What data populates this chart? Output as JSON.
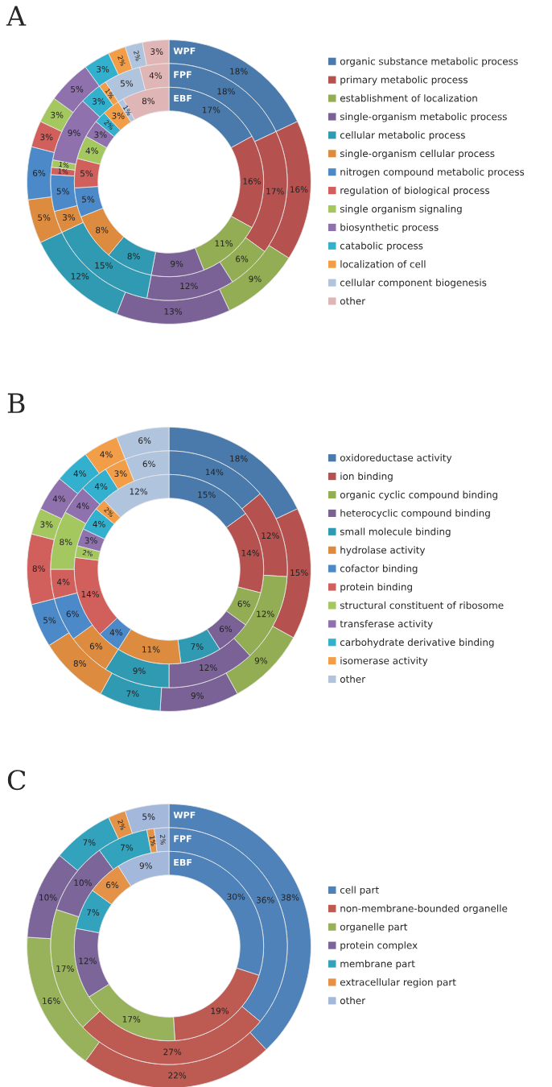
{
  "chart_data": [
    {
      "type": "donut",
      "title": "A",
      "legend": "right",
      "categories": [
        "organic substance metabolic process",
        "primary metabolic process",
        "establishment of localization",
        "single-organism metabolic process",
        "cellular metabolic process",
        "single-organism cellular process",
        "nitrogen compound metabolic process",
        "regulation of biological process",
        "single organism signaling",
        "biosynthetic process",
        "catabolic process",
        "localization of cell",
        "cellular component biogenesis",
        "other"
      ],
      "colors": [
        "#4a7aab",
        "#b5524f",
        "#93ad55",
        "#7a6296",
        "#2f9ab2",
        "#dd8b3f",
        "#4c89c8",
        "#d15f5c",
        "#a4c760",
        "#8f72ad",
        "#34b0cf",
        "#f29d48",
        "#b0c4de",
        "#e0b5b5"
      ],
      "series": [
        {
          "name": "WPF",
          "values": [
            18,
            16,
            9,
            13,
            12,
            5,
            6,
            3,
            3,
            5,
            3,
            2,
            2,
            3
          ],
          "value_labels": [
            "18%",
            "16%",
            "9%",
            "13%",
            "12%",
            "5%",
            "6%",
            "3%",
            "3%",
            "5%",
            "3%",
            "2%",
            "2%",
            "3%"
          ]
        },
        {
          "name": "FPF",
          "values": [
            18,
            17,
            6,
            12,
            15,
            3,
            5,
            1,
            1,
            9,
            3,
            1,
            5,
            4
          ],
          "value_labels": [
            "18%",
            "17%",
            "6%",
            "12%",
            "15%",
            "3%",
            "5%",
            "1%",
            "1%",
            "9%",
            "3%",
            "1%",
            "5%",
            "4%"
          ]
        },
        {
          "name": "EBF",
          "values": [
            17,
            16,
            11,
            9,
            8,
            8,
            5,
            5,
            4,
            3,
            2,
            3,
            1,
            8
          ],
          "value_labels": [
            "17%",
            "16%",
            "11%",
            "9%",
            "8%",
            "8%",
            "5%",
            "5%",
            "4%",
            "3%",
            "2%",
            "3%",
            "1%",
            "8%"
          ]
        }
      ]
    },
    {
      "type": "donut",
      "title": "B",
      "legend": "right",
      "categories": [
        "oxidoreductase activity",
        "ion binding",
        "organic cyclic compound binding",
        "heterocyclic compound binding",
        "small molecule binding",
        "hydrolase activity",
        "cofactor binding",
        "protein binding",
        "structural constituent of ribosome",
        "transferase activity",
        "carbohydrate derivative binding",
        "isomerase activity",
        "other"
      ],
      "colors": [
        "#4a7aab",
        "#b5524f",
        "#93ad55",
        "#7a6296",
        "#2f9ab2",
        "#dd8b3f",
        "#4c89c8",
        "#d15f5c",
        "#a4c760",
        "#8f72ad",
        "#34b0cf",
        "#f29d48",
        "#b0c4de"
      ],
      "series": [
        {
          "values": [
            18,
            15,
            9,
            9,
            7,
            8,
            5,
            8,
            3,
            4,
            4,
            4,
            6
          ],
          "value_labels": [
            "18%",
            "15%",
            "9%",
            "9%",
            "7%",
            "8%",
            "5%",
            "8%",
            "3%",
            "4%",
            "4%",
            "4%",
            "6%"
          ]
        },
        {
          "values": [
            14,
            12,
            12,
            12,
            9,
            6,
            6,
            4,
            8,
            4,
            4,
            3,
            6
          ],
          "value_labels": [
            "14%",
            "12%",
            "12%",
            "12%",
            "9%",
            "6%",
            "6%",
            "4%",
            "8%",
            "4%",
            "4%",
            "3%",
            "6%"
          ]
        },
        {
          "values": [
            15,
            14,
            6,
            6,
            7,
            11,
            4,
            14,
            2,
            3,
            4,
            2,
            12
          ],
          "value_labels": [
            "15%",
            "14%",
            "6%",
            "6%",
            "7%",
            "11%",
            "4%",
            "14%",
            "2%",
            "3%",
            "4%",
            "2%",
            "12%"
          ]
        }
      ]
    },
    {
      "type": "donut",
      "title": "C",
      "legend": "right",
      "categories": [
        "cell part",
        "non-membrane-bounded organelle",
        "organelle part",
        "protein complex",
        "membrane part",
        "extracellular region part",
        "other"
      ],
      "colors": [
        "#4f82b9",
        "#bd5a52",
        "#97b25a",
        "#7c6699",
        "#33a2bd",
        "#e39248",
        "#a3b8da"
      ],
      "series": [
        {
          "name": "WPF",
          "values": [
            38,
            22,
            16,
            10,
            7,
            2,
            5
          ],
          "value_labels": [
            "38%",
            "22%",
            "16%",
            "10%",
            "7%",
            "2%",
            "5%"
          ]
        },
        {
          "name": "FPF",
          "values": [
            36,
            27,
            17,
            10,
            7,
            1,
            2
          ],
          "value_labels": [
            "36%",
            "27%",
            "17%",
            "10%",
            "7%",
            "1%",
            "2%"
          ]
        },
        {
          "name": "EBF",
          "values": [
            30,
            19,
            17,
            12,
            7,
            6,
            9
          ],
          "value_labels": [
            "30%",
            "19%",
            "17%",
            "12%",
            "7%",
            "6%",
            "9%"
          ]
        }
      ]
    }
  ]
}
